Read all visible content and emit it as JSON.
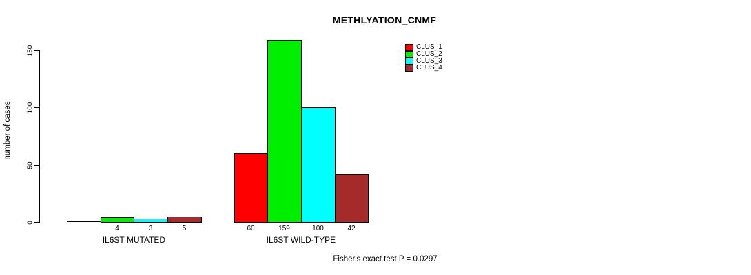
{
  "chart_data": {
    "type": "bar",
    "title": "METHLYATION_CNMF",
    "ylabel": "number of cases",
    "xlabel": "",
    "yticks": [
      0,
      50,
      100,
      150
    ],
    "ylim": [
      0,
      159
    ],
    "grid": false,
    "legend_position": "top-right",
    "legend": [
      "CLUS_1",
      "CLUS_2",
      "CLUS_3",
      "CLUS_4"
    ],
    "series_colors": [
      "#ff0000",
      "#00ee00",
      "#00ffff",
      "#a52a2a"
    ],
    "groups": [
      {
        "label": "IL6ST MUTATED",
        "values": [
          0,
          4,
          3,
          5
        ],
        "bar_labels": [
          "",
          "4",
          "3",
          "5"
        ]
      },
      {
        "label": "IL6ST WILD-TYPE",
        "values": [
          60,
          159,
          100,
          42
        ],
        "bar_labels": [
          "60",
          "159",
          "100",
          "42"
        ]
      }
    ],
    "annotation": "Fisher's exact test P = 0.0297",
    "colors": {
      "axis": "#000000",
      "text": "#000000",
      "background": "#ffffff"
    }
  }
}
